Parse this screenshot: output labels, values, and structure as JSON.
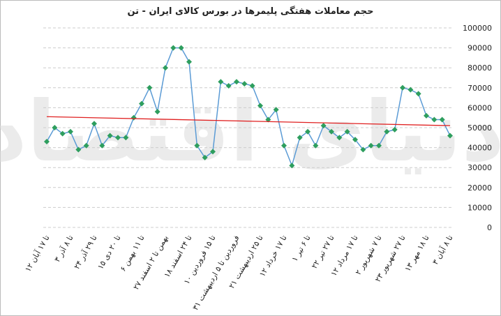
{
  "chart_data": {
    "type": "line",
    "title": "حجم معاملات هفتگی پلیمرها در بورس کالای ایران - تن",
    "watermark": "دنیای اقتصاد",
    "categories": [
      "۱۲ تا ۱۷ آبان",
      null,
      null,
      "۳ تا ۸ آذر",
      null,
      null,
      "۲۴ تا ۲۹ آذر",
      null,
      null,
      "۱۵ تا ۲۰ دی",
      null,
      null,
      "۶ تا ۱۱ بهمن",
      null,
      null,
      "۲۷ بهمن تا ۲ اسفند",
      null,
      null,
      "۱۸ تا ۲۴ اسفند",
      null,
      null,
      "۱۰ تا ۱۵ فروردین",
      null,
      null,
      "۳۱ فروردین تا ۵ اردیبهشت",
      null,
      null,
      "۲۱ تا ۲۵ اردیبهشت",
      null,
      null,
      "۱۲ تا ۱۷ خرداد",
      null,
      null,
      "۱ تا ۶ تیر",
      null,
      null,
      "۲۲ تا ۲۷ تیر",
      null,
      null,
      "۱۲ تا ۱۷ مرداد",
      null,
      null,
      "۲ تا ۷ شهریور",
      null,
      null,
      "۲۳ تا ۲۷ شهریور",
      null,
      null,
      "۱۳ تا ۱۸ مهر",
      null,
      null,
      "۳ تا ۸ آبان"
    ],
    "series": [
      {
        "color": "#5b9bd5",
        "marker_color": "#2e9e5e",
        "values": [
          43000,
          50000,
          47000,
          48000,
          39000,
          41000,
          52000,
          41000,
          46000,
          45000,
          45000,
          55000,
          62000,
          70000,
          58000,
          80000,
          90000,
          90000,
          83000,
          41000,
          35000,
          38000,
          73000,
          71000,
          73000,
          72000,
          71000,
          61000,
          54000,
          59000,
          41000,
          31000,
          45000,
          48000,
          41000,
          51000,
          48000,
          45000,
          48000,
          44000,
          39000,
          41000,
          41000,
          48000,
          49000,
          70000,
          69000,
          67000,
          56000,
          54000,
          54000,
          46000
        ]
      }
    ],
    "trend_line": {
      "values": [
        55500,
        51000
      ],
      "color": "#e02020"
    },
    "ylim": [
      0,
      100000
    ],
    "yticks": [
      0,
      10000,
      20000,
      30000,
      40000,
      50000,
      60000,
      70000,
      80000,
      90000,
      100000
    ],
    "grid": true
  }
}
